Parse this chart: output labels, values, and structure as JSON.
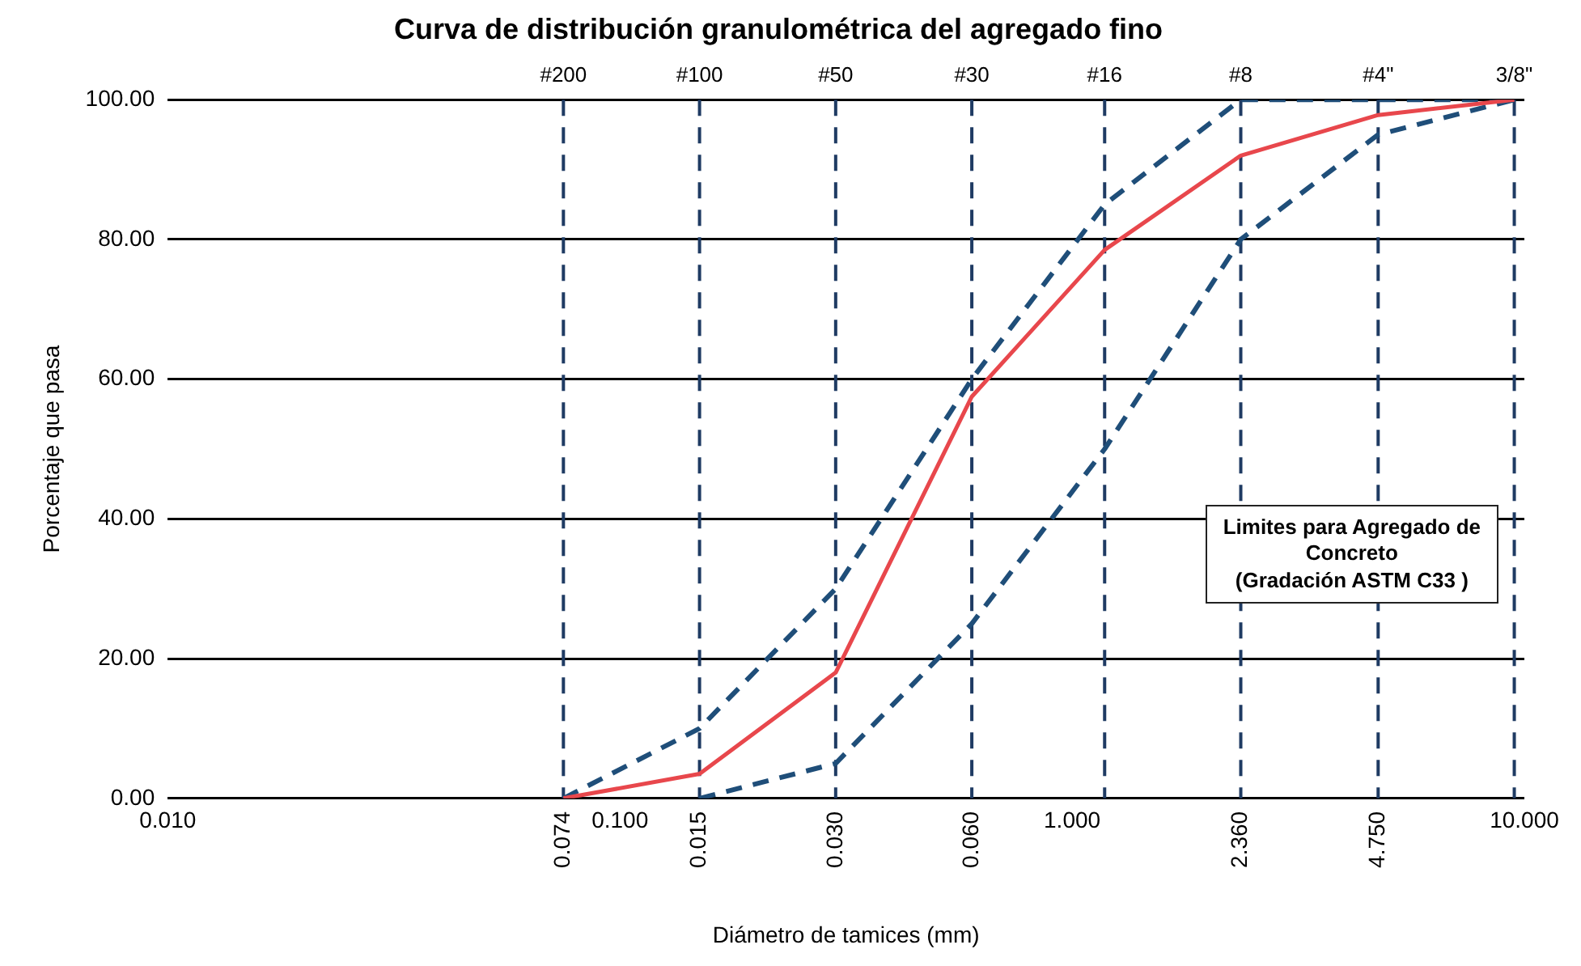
{
  "chart_data": {
    "type": "line",
    "title": "Curva de distribución granulométrica del agregado fino",
    "xlabel": "Diámetro de tamices (mm)",
    "ylabel": "Porcentaje que pasa",
    "log": "x",
    "xlim": [
      0.01,
      10
    ],
    "xticks": [
      {
        "value": 0.01,
        "label": "0.010"
      },
      {
        "value": 0.1,
        "label": "0.100"
      },
      {
        "value": 1,
        "label": "1.000"
      },
      {
        "value": 10,
        "label": "10.000"
      }
    ],
    "ylim": [
      0,
      100
    ],
    "yticks": [
      {
        "value": 0,
        "label": "0.00"
      },
      {
        "value": 20,
        "label": "20.00"
      },
      {
        "value": 40,
        "label": "40.00"
      },
      {
        "value": 60,
        "label": "60.00"
      },
      {
        "value": 80,
        "label": "80.00"
      },
      {
        "value": 100,
        "label": "100.00"
      }
    ],
    "x": [
      0.075,
      0.15,
      0.3,
      0.6,
      1.18,
      2.36,
      4.75,
      9.5
    ],
    "series": [
      {
        "color": "#e8474c",
        "line_style": "solid",
        "values": [
          0,
          3.5,
          18,
          57.5,
          78.5,
          92,
          97.8,
          100
        ]
      },
      {
        "color": "#1f4e79",
        "line_style": "dashed",
        "values": [
          0,
          10,
          30,
          60,
          85,
          100,
          100,
          100
        ]
      },
      {
        "color": "#1f4e79",
        "line_style": "dashed",
        "values": [
          null,
          0,
          5,
          25,
          50,
          80,
          95,
          100
        ]
      }
    ],
    "ref_lines": [
      {
        "axis": "x",
        "value": 0.075,
        "color": "#1f3b63",
        "line_style": "dashed"
      },
      {
        "axis": "x",
        "value": 0.15,
        "color": "#1f3b63",
        "line_style": "dashed"
      },
      {
        "axis": "x",
        "value": 0.3,
        "color": "#1f3b63",
        "line_style": "dashed"
      },
      {
        "axis": "x",
        "value": 0.6,
        "color": "#1f3b63",
        "line_style": "dashed"
      },
      {
        "axis": "x",
        "value": 1.18,
        "color": "#1f3b63",
        "line_style": "dashed"
      },
      {
        "axis": "x",
        "value": 2.36,
        "color": "#1f3b63",
        "line_style": "dashed"
      },
      {
        "axis": "x",
        "value": 4.75,
        "color": "#1f3b63",
        "line_style": "dashed"
      },
      {
        "axis": "x",
        "value": 9.5,
        "color": "#1f3b63",
        "line_style": "dashed"
      }
    ],
    "annotations": [
      "Limites para Agregado de\nConcreto\n(Gradación ASTM C33 )",
      {
        "text": "0.074",
        "x": 0.075,
        "y": 0
      },
      {
        "text": "0.015",
        "x": 0.15,
        "y": 0
      },
      {
        "text": "0.030",
        "x": 0.3,
        "y": 0
      },
      {
        "text": "0.060",
        "x": 0.6,
        "y": 0
      },
      {
        "text": "2.360",
        "x": 2.36,
        "y": 0
      },
      {
        "text": "4.750",
        "x": 4.75,
        "y": 0
      },
      {
        "text": "#200",
        "x": 0.075,
        "y": 100
      },
      {
        "text": "#100",
        "x": 0.15,
        "y": 100
      },
      {
        "text": "#50",
        "x": 0.3,
        "y": 100
      },
      {
        "text": "#30",
        "x": 0.6,
        "y": 100
      },
      {
        "text": "#16",
        "x": 1.18,
        "y": 100
      },
      {
        "text": "#8",
        "x": 2.36,
        "y": 100
      },
      {
        "text": "#4\"",
        "x": 4.75,
        "y": 100
      },
      {
        "text": "3/8\"",
        "x": 9.5,
        "y": 100
      }
    ],
    "grid": "y",
    "legend": false,
    "marker": "none"
  }
}
